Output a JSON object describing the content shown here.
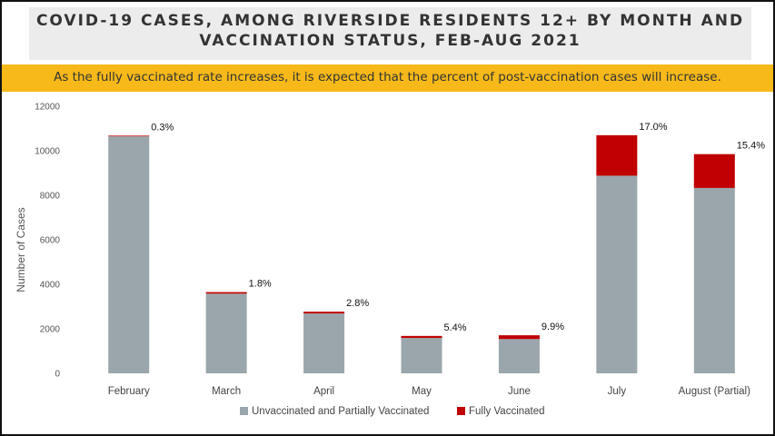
{
  "title_line1": "COVID-19 CASES, AMONG RIVERSIDE RESIDENTS 12+ BY MONTH AND",
  "title_line2": "VACCINATION STATUS, FEB-AUG 2021",
  "banner": "As the fully vaccinated rate increases, it is expected that the percent of post-vaccination cases will increase.",
  "colors": {
    "unvaccinated": "#9aa6ab",
    "fully_vaccinated": "#c00000",
    "banner": "#f6b919",
    "title_bg": "#ececec"
  },
  "chart_data": {
    "type": "bar",
    "stacked": true,
    "categories": [
      "February",
      "March",
      "April",
      "May",
      "June",
      "July",
      "August (Partial)"
    ],
    "series": [
      {
        "name": "Unvaccinated and Partially Vaccinated",
        "values": [
          10650,
          3580,
          2690,
          1590,
          1540,
          8880,
          8330
        ]
      },
      {
        "name": "Fully Vaccinated",
        "values": [
          30,
          70,
          80,
          90,
          170,
          1820,
          1520
        ]
      }
    ],
    "data_labels": [
      "0.3%",
      "1.8%",
      "2.8%",
      "5.4%",
      "9.9%",
      "17.0%",
      "15.4%"
    ],
    "ylabel": "Number of Cases",
    "ylim": [
      0,
      12000
    ],
    "yticks": [
      0,
      2000,
      4000,
      6000,
      8000,
      10000,
      12000
    ],
    "grid": false,
    "legend": "bottom"
  }
}
